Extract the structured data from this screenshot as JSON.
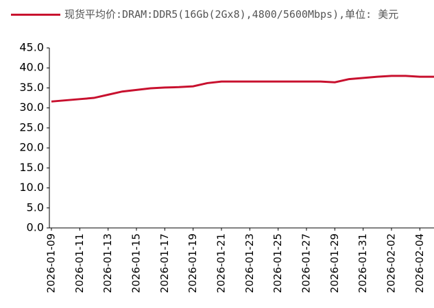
{
  "chart_data": {
    "type": "line",
    "categories": [
      "2026-01-09",
      null,
      "2026-01-11",
      null,
      "2026-01-13",
      null,
      "2026-01-15",
      null,
      "2026-01-17",
      null,
      "2026-01-19",
      null,
      "2026-01-21",
      null,
      "2026-01-23",
      null,
      "2026-01-25",
      null,
      "2026-01-27",
      null,
      "2026-01-29",
      null,
      "2026-01-31",
      null,
      "2026-02-02",
      null,
      "2026-02-04",
      null
    ],
    "series": [
      {
        "name": "现货平均价:DRAM:DDR5(16Gb(2Gx8),4800/5600Mbps),单位: 美元",
        "color": "#c8102e",
        "values": [
          31.6,
          31.9,
          32.2,
          32.5,
          33.3,
          34.1,
          34.5,
          34.9,
          35.1,
          35.2,
          35.4,
          36.2,
          36.6,
          36.6,
          36.6,
          36.6,
          36.6,
          36.6,
          36.6,
          36.6,
          36.4,
          37.2,
          37.5,
          37.8,
          38.0,
          38.0,
          37.8,
          37.8
        ]
      }
    ],
    "ylim": [
      0,
      45
    ],
    "yticks": [
      {
        "value": 0,
        "label": "0.0"
      },
      {
        "value": 5,
        "label": "5.0"
      },
      {
        "value": 10,
        "label": "10.0"
      },
      {
        "value": 15,
        "label": "15.0"
      },
      {
        "value": 20,
        "label": "20.0"
      },
      {
        "value": 25,
        "label": "25.0"
      },
      {
        "value": 30,
        "label": "30.0"
      },
      {
        "value": 35,
        "label": "35.0"
      },
      {
        "value": 40,
        "label": "40.0"
      },
      {
        "value": 45,
        "label": "45.0"
      }
    ],
    "legend": "top-left"
  }
}
